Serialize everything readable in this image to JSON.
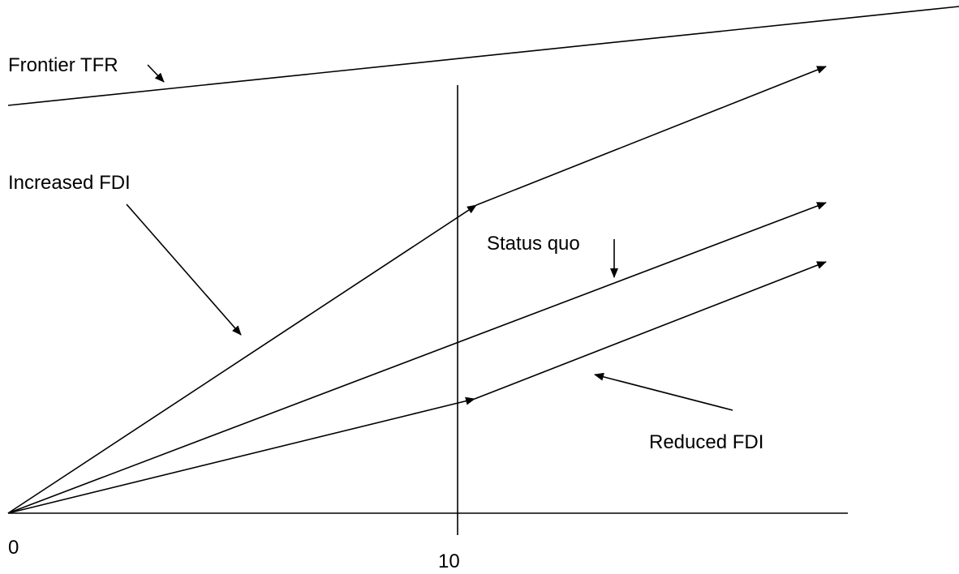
{
  "labels": {
    "frontier": "Frontier TFR",
    "increased": "Increased FDI",
    "status_quo": "Status quo",
    "reduced": "Reduced FDI"
  },
  "axis": {
    "origin_tick": "0",
    "mid_tick": "10"
  },
  "colors": {
    "ink": "#000000",
    "background": "#ffffff"
  }
}
